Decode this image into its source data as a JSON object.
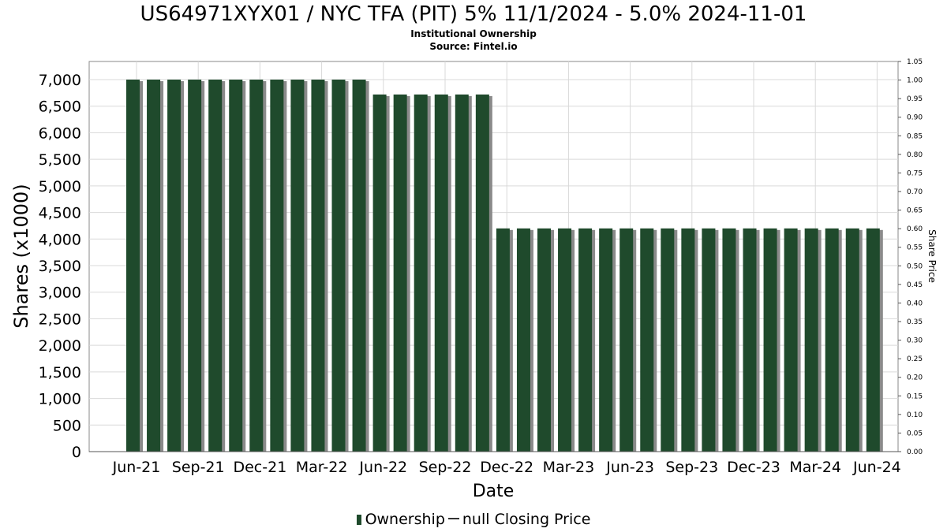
{
  "title": "US64971XYX01 / NYC TFA (PIT) 5% 11/1/2024 - 5.0% 2024-11-01",
  "subtitle_1": "Institutional Ownership",
  "subtitle_2": "Source: Fintel.io",
  "legend": {
    "ownership_label": "Ownership",
    "price_label": "null Closing Price"
  },
  "colors": {
    "bar": "#1f4a2c",
    "bar_shadow": "#8a8a8a",
    "grid": "#d9d9d9",
    "axis": "#000000"
  },
  "chart_data": {
    "type": "bar",
    "title": "US64971XYX01 / NYC TFA (PIT) 5% 11/1/2024 - 5.0% 2024-11-01",
    "xlabel": "Date",
    "ylabel": "Shares (x1000)",
    "y2label": "Share Price",
    "ylim": [
      0,
      7000
    ],
    "y2lim": [
      0,
      1.05
    ],
    "yticks": [
      "0",
      "500",
      "1,000",
      "1,500",
      "2,000",
      "2,500",
      "3,000",
      "3,500",
      "4,000",
      "4,500",
      "5,000",
      "5,500",
      "6,000",
      "6,500",
      "7,000"
    ],
    "y2ticks": [
      "0.00",
      "0.05",
      "0.10",
      "0.15",
      "0.20",
      "0.25",
      "0.30",
      "0.35",
      "0.40",
      "0.45",
      "0.50",
      "0.55",
      "0.60",
      "0.65",
      "0.70",
      "0.75",
      "0.80",
      "0.85",
      "0.90",
      "0.95",
      "1.00",
      "1.05"
    ],
    "xticks": [
      "Jun-21",
      "Sep-21",
      "Dec-21",
      "Mar-22",
      "Jun-22",
      "Sep-22",
      "Dec-22",
      "Mar-23",
      "Jun-23",
      "Sep-23",
      "Dec-23",
      "Mar-24",
      "Jun-24"
    ],
    "grid": true,
    "series": [
      {
        "name": "Ownership",
        "values": [
          7000,
          7000,
          7000,
          7000,
          7000,
          7000,
          7000,
          7000,
          7000,
          7000,
          7000,
          7000,
          6720,
          6720,
          6720,
          6720,
          6720,
          6720,
          4200,
          4200,
          4200,
          4200,
          4200,
          4200,
          4200,
          4200,
          4200,
          4200,
          4200,
          4200,
          4200,
          4200,
          4200,
          4200,
          4200,
          4200,
          4200
        ]
      }
    ]
  }
}
